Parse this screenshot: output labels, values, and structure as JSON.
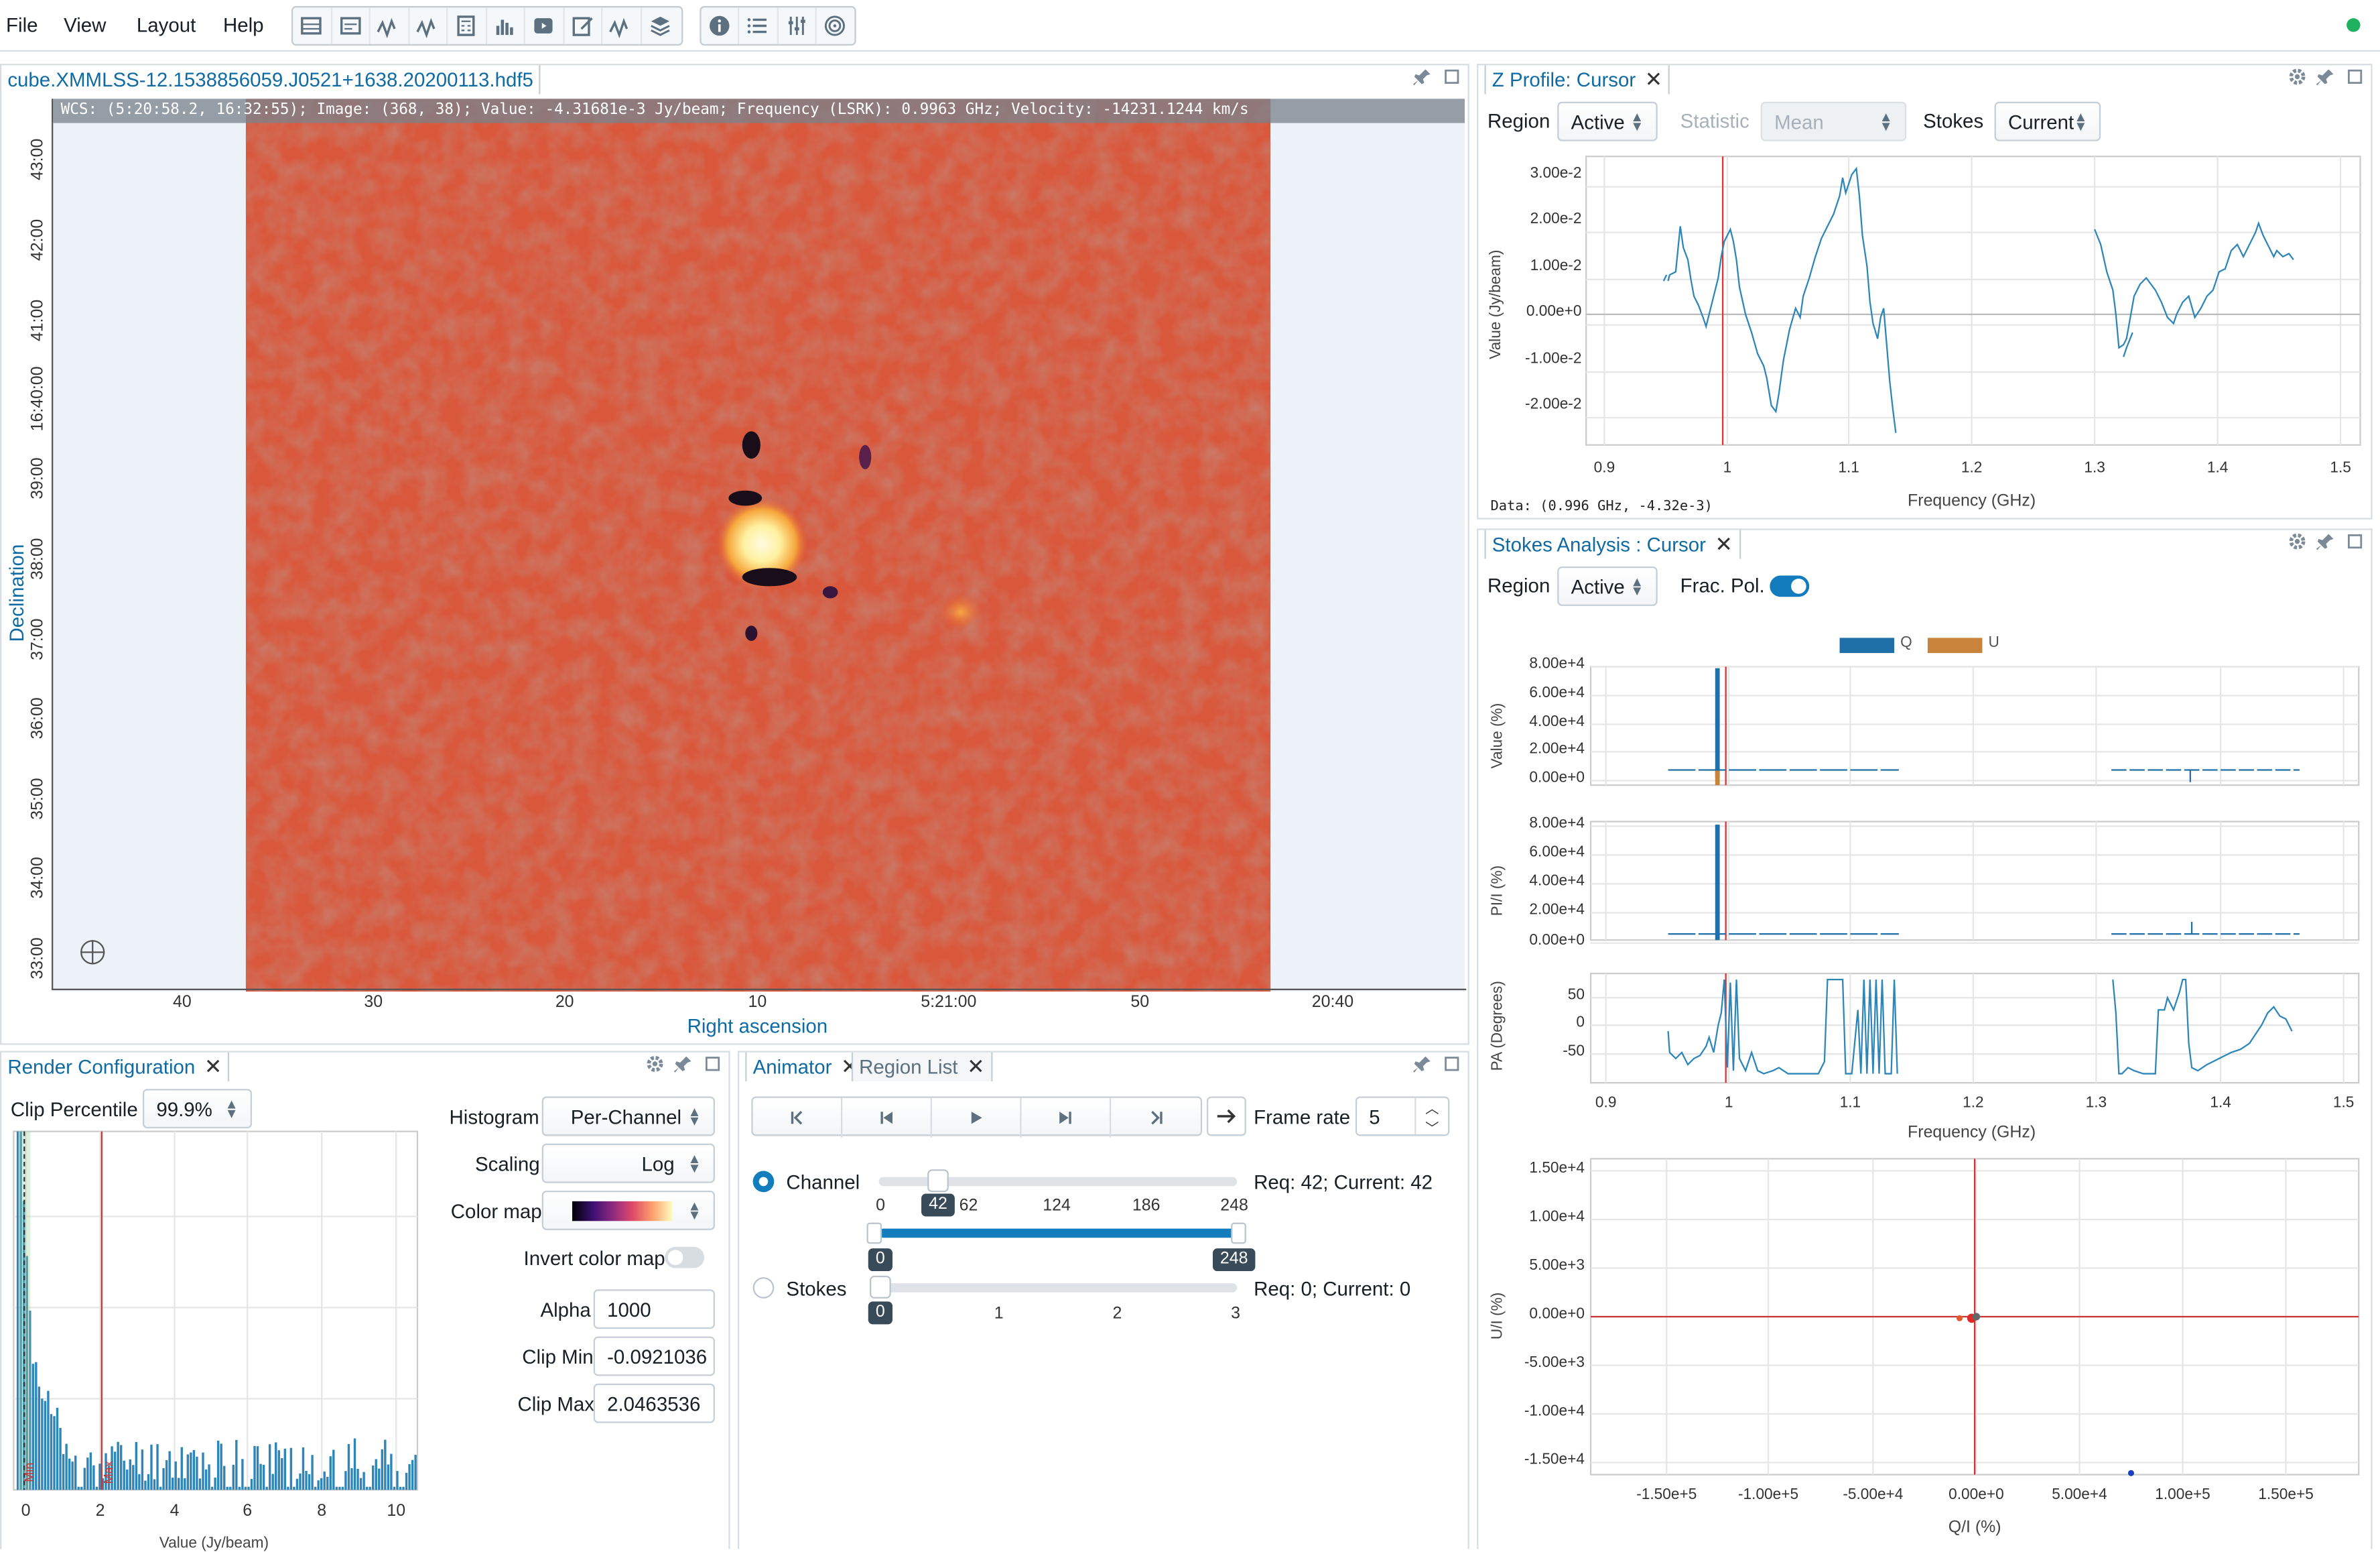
{
  "menu": [
    "File",
    "View",
    "Layout",
    "Help"
  ],
  "toolbar_icons": [
    "table-icon",
    "header-icon",
    "spatial-profile-icon",
    "spectral-profile-icon",
    "calculator-icon",
    "histogram-icon",
    "animator-icon",
    "edit-icon",
    "stokes-icon",
    "layers-icon",
    "info-icon",
    "list-icon",
    "sliders-icon",
    "spiral-icon"
  ],
  "image_viewer": {
    "tab": "cube.XMMLSS-12.1538856059.J0521+1638.20200113.hdf5",
    "cursor_info": "WCS: (5:20:58.2, 16:32:55); Image: (368, 38); Value: -4.31681e-3 Jy/beam; Frequency (LSRK): 0.9963 GHz; Velocity: -14231.1244 km/s",
    "y_label": "Declination",
    "x_label": "Right ascension",
    "y_ticks": [
      "43:00",
      "42:00",
      "41:00",
      "16:40:00",
      "39:00",
      "38:00",
      "37:00",
      "36:00",
      "35:00",
      "34:00",
      "33:00"
    ],
    "x_ticks": [
      "40",
      "30",
      "20",
      "10",
      "5:21:00",
      "50",
      "20:40"
    ]
  },
  "zprofile": {
    "tab": "Z Profile: Cursor",
    "region_label": "Region",
    "region_value": "Active",
    "statistic_label": "Statistic",
    "statistic_value": "Mean",
    "stokes_label": "Stokes",
    "stokes_value": "Current",
    "y_label": "Value (Jy/beam)",
    "x_label": "Frequency (GHz)",
    "y_ticks": [
      "3.00e-2",
      "2.00e-2",
      "1.00e-2",
      "0.00e+0",
      "-1.00e-2",
      "-2.00e-2"
    ],
    "x_ticks": [
      "0.9",
      "1",
      "1.1",
      "1.2",
      "1.3",
      "1.4",
      "1.5"
    ],
    "data_text": "Data: (0.996 GHz, -4.32e-3)"
  },
  "stokes": {
    "tab": "Stokes Analysis : Cursor",
    "region_label": "Region",
    "region_value": "Active",
    "frac_pol_label": "Frac. Pol.",
    "legend": [
      "Q",
      "U"
    ],
    "colors": {
      "Q": "#1f6fa8",
      "U": "#c8843a"
    },
    "y1_label": "Value (%)",
    "y2_label": "PI/I (%)",
    "y3_label": "PA (Degrees)",
    "y1_ticks": [
      "8.00e+4",
      "6.00e+4",
      "4.00e+4",
      "2.00e+4",
      "0.00e+0"
    ],
    "y2_ticks": [
      "8.00e+4",
      "6.00e+4",
      "4.00e+4",
      "2.00e+4",
      "0.00e+0"
    ],
    "y3_ticks": [
      "50",
      "0",
      "-50"
    ],
    "x_ticks": [
      "0.9",
      "1",
      "1.1",
      "1.2",
      "1.3",
      "1.4",
      "1.5"
    ],
    "x_label": "Frequency (GHz)",
    "scatter_y_label": "U/I (%)",
    "scatter_x_label": "Q/I (%)",
    "scatter_y_ticks": [
      "1.50e+4",
      "1.00e+4",
      "5.00e+3",
      "0.00e+0",
      "-5.00e+3",
      "-1.00e+4",
      "-1.50e+4"
    ],
    "scatter_x_ticks": [
      "-1.50e+5",
      "-1.00e+5",
      "-5.00e+4",
      "0.00e+0",
      "5.00e+4",
      "1.00e+5",
      "1.50e+5"
    ]
  },
  "render": {
    "tab": "Render Configuration",
    "clip_label": "Clip Percentile",
    "clip_value": "99.9%",
    "histogram_label": "Histogram",
    "histogram_value": "Per-Channel",
    "scaling_label": "Scaling",
    "scaling_value": "Log",
    "colormap_label": "Color map",
    "invert_label": "Invert color map",
    "alpha_label": "Alpha",
    "alpha_value": "1000",
    "clipmin_label": "Clip Min",
    "clipmin_value": "-0.0921036",
    "clipmax_label": "Clip Max",
    "clipmax_value": "2.0463536",
    "hist_x_ticks": [
      "0",
      "2",
      "4",
      "6",
      "8",
      "10"
    ],
    "hist_x_label": "Value (Jy/beam)",
    "min_marker": "Min",
    "max_marker": "Max"
  },
  "animator": {
    "tab": "Animator",
    "tab2": "Region List",
    "frame_rate_label": "Frame rate",
    "frame_rate_value": "5",
    "channel_label": "Channel",
    "channel_value": "42",
    "channel_ticks": [
      "0",
      "62",
      "124",
      "186",
      "248"
    ],
    "channel_range": [
      "0",
      "248"
    ],
    "channel_status": "Req: 42; Current: 42",
    "stokes_label": "Stokes",
    "stokes_value": "0",
    "stokes_ticks": [
      "1",
      "2",
      "3"
    ],
    "stokes_status": "Req: 0; Current: 0"
  }
}
